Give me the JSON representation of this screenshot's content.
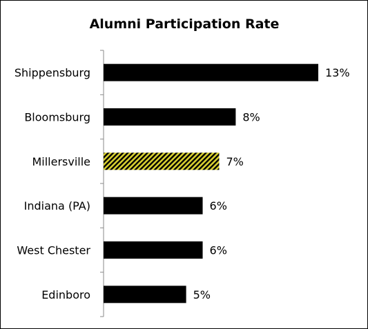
{
  "chart_data": {
    "type": "bar",
    "orientation": "horizontal",
    "title": "Alumni Participation Rate",
    "categories": [
      "Shippensburg",
      "Bloomsburg",
      "Millersville",
      "Indiana (PA)",
      "West Chester",
      "Edinboro"
    ],
    "values": [
      13,
      8,
      7,
      6,
      6,
      5
    ],
    "data_labels": [
      "13%",
      "8%",
      "7%",
      "6%",
      "6%",
      "5%"
    ],
    "unit": "%",
    "xlim": [
      0,
      13
    ],
    "grid": false,
    "legend": "none",
    "highlight_category": "Millersville",
    "colors": {
      "bar": "#000000",
      "highlight_fill": "#d8d030",
      "highlight_stripe": "#000000"
    }
  }
}
